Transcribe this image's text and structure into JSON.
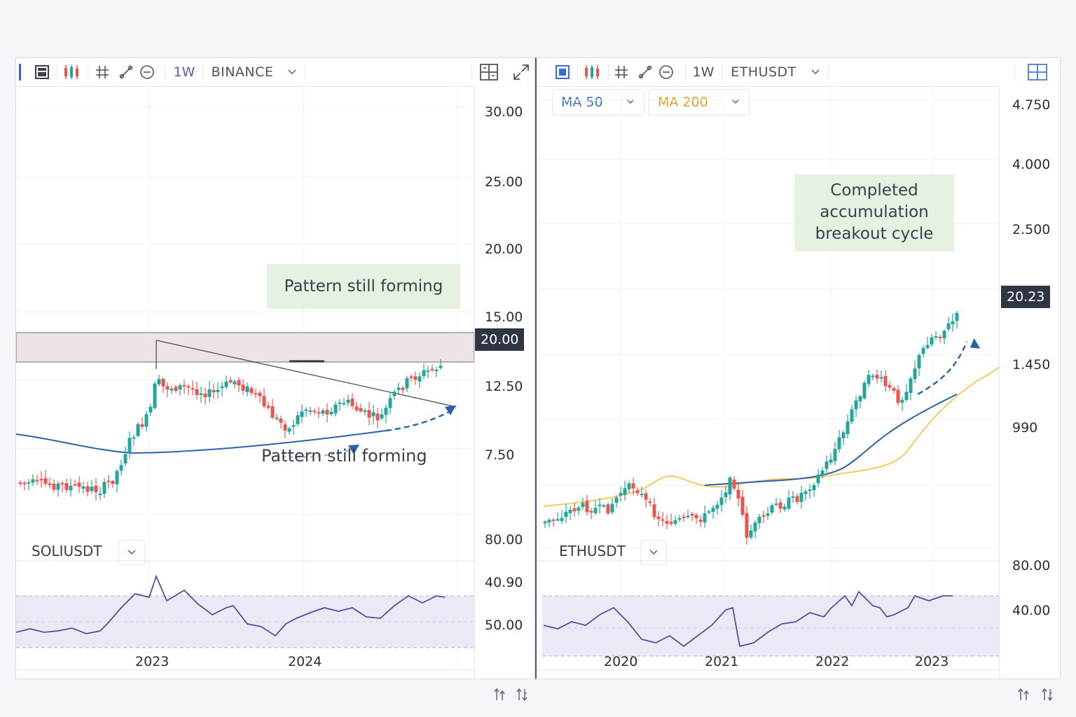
{
  "left_chart": {
    "toolbar": {
      "interval": "1W",
      "exchange": "BINANCE"
    },
    "price_scale": [
      "30.00",
      "25.00",
      "20.00",
      "15.00",
      "12.50",
      "7.50"
    ],
    "price_tag": "20.00",
    "time_scale": [
      "2023",
      "2024"
    ],
    "annotation_box": "Pattern still forming",
    "annotation_text": "Pattern still forming",
    "indicator": {
      "symbol": "SOLIUSDT",
      "scale": [
        "80.00",
        "40.90",
        "50.00"
      ]
    },
    "colors": {
      "up": "#26a69a",
      "down": "#ef5350",
      "zone": "#ede3e6",
      "line": "#2962a8",
      "rsi": "#5b4a9e"
    }
  },
  "right_chart": {
    "toolbar": {
      "interval": "1W",
      "symbol": "ETHUSDT"
    },
    "ma_buttons": [
      {
        "label": "MA 50",
        "color": "#3f72b8"
      },
      {
        "label": "MA 200",
        "color": "#d4a32a"
      }
    ],
    "price_scale": [
      "4.750",
      "4.000",
      "2.500",
      "1.450",
      "990"
    ],
    "price_tag": "20.23",
    "time_scale": [
      "2020",
      "2021",
      "2022",
      "2023"
    ],
    "annotation_box": [
      "Completed",
      "accumulation",
      "breakout cycle"
    ],
    "indicator": {
      "symbol": "ETHUSDT",
      "scale": [
        "80.00",
        "40.00"
      ]
    }
  },
  "icons": {
    "toolbar_left": [
      "sidebar-bar-icon",
      "calculator-icon",
      "candles-icon",
      "crosshair-icon",
      "trendline-icon",
      "circle-minus-icon",
      "layout-icon",
      "expand-icon"
    ],
    "footer": [
      "sort-up-icon",
      "sort-down-icon"
    ]
  }
}
